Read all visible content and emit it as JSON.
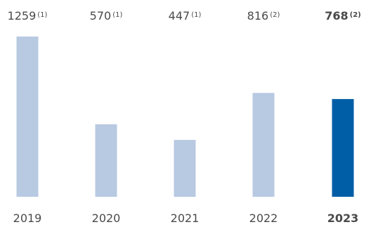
{
  "chart_data": {
    "type": "bar",
    "title": "",
    "xlabel": "",
    "ylabel": "",
    "categories": [
      "2019",
      "2020",
      "2021",
      "2022",
      "2023"
    ],
    "values": [
      1259,
      570,
      447,
      816,
      768
    ],
    "value_labels": [
      "1259",
      "570",
      "447",
      "816",
      "768"
    ],
    "footnote_marks": [
      "(1)",
      "(1)",
      "(1)",
      "(2)",
      "(2)"
    ],
    "highlight_index": 4,
    "ylim": [
      0,
      1259
    ],
    "grid": false,
    "legend": "none"
  },
  "colors": {
    "bar": "#b8c9e2",
    "highlight_bar": "#005ea6",
    "text": "#4a4a4a",
    "highlight_text": "#005ea6"
  }
}
